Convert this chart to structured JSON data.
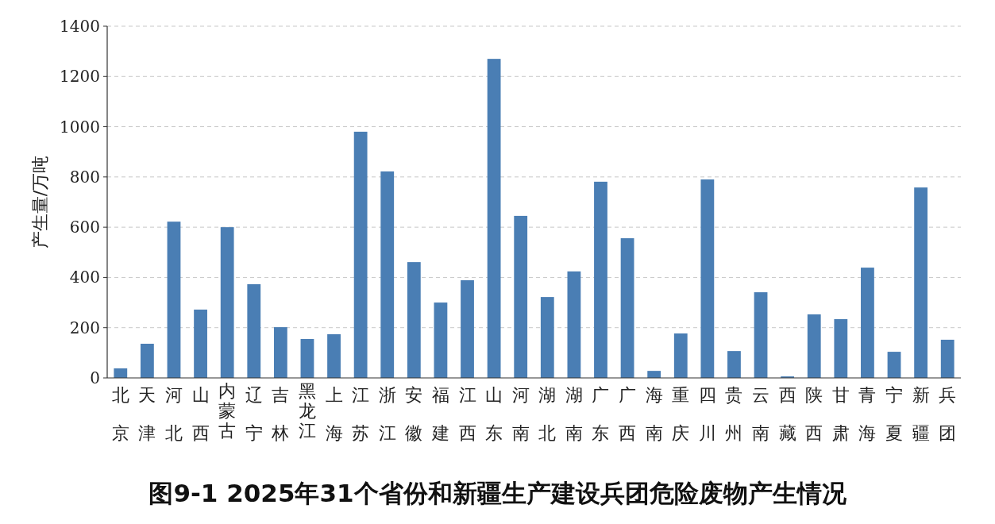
{
  "chart_data": {
    "type": "bar",
    "title": "图9-1  2025年31个省份和新疆生产建设兵团危险废物产生情况",
    "ylabel": "产生量/万吨",
    "categories": [
      "北京",
      "天津",
      "河北",
      "山西",
      "内蒙古",
      "辽宁",
      "吉林",
      "黑龙江",
      "上海",
      "江苏",
      "浙江",
      "安徽",
      "福建",
      "江西",
      "山东",
      "河南",
      "湖北",
      "湖南",
      "广东",
      "广西",
      "海南",
      "重庆",
      "四川",
      "贵州",
      "云南",
      "西藏",
      "陕西",
      "甘肃",
      "青海",
      "宁夏",
      "新疆",
      "兵团"
    ],
    "values": [
      38,
      136,
      622,
      272,
      600,
      373,
      202,
      155,
      174,
      980,
      822,
      461,
      300,
      389,
      1270,
      645,
      322,
      424,
      781,
      556,
      28,
      177,
      790,
      107,
      341,
      6,
      253,
      234,
      439,
      104,
      758,
      152
    ],
    "color": "#4a7eb4",
    "ylim": [
      0,
      1400
    ],
    "yticks": [
      0,
      200,
      400,
      600,
      800,
      1000,
      1200,
      1400
    ],
    "grid": "y"
  }
}
